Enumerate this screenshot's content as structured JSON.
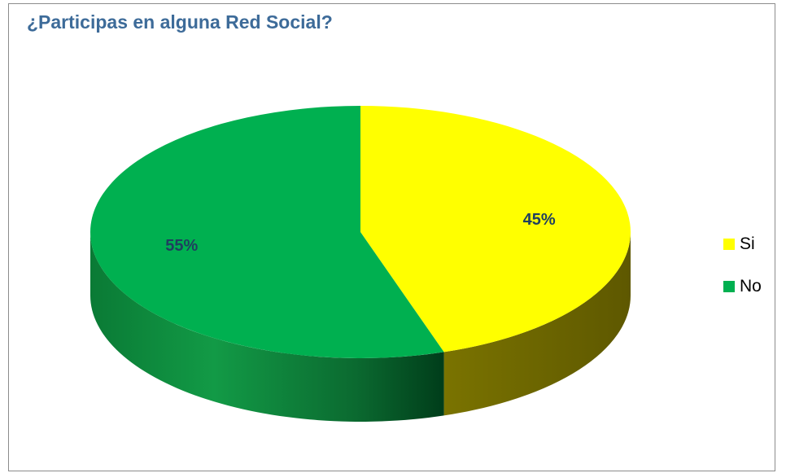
{
  "chart_data": {
    "type": "pie",
    "title": "¿Participas en alguna Red Social?",
    "style": "3d",
    "legend_position": "right",
    "slices": [
      {
        "label": "Si",
        "value": 45,
        "display": "45%",
        "color": "#ffff00",
        "side_color": "#6b6600"
      },
      {
        "label": "No",
        "value": 55,
        "display": "55%",
        "color": "#00b050",
        "side_color": "#1a8a40"
      }
    ],
    "label_color": "#1f3f5f"
  }
}
